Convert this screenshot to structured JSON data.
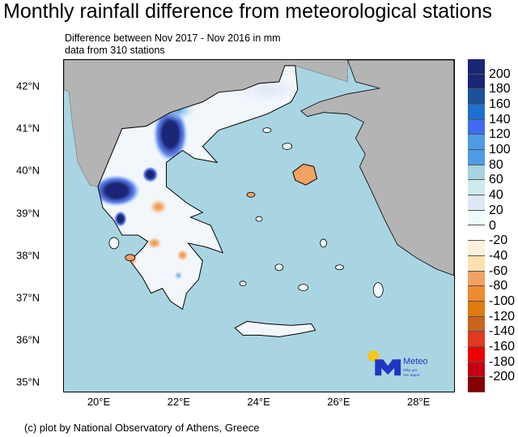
{
  "title": "Monthly rainfall difference from meteorological stations",
  "subtitle_lines": [
    "Difference between Nov 2017 - Nov 2016 in mm",
    "data from 310 stations"
  ],
  "lat_ticks": [
    "42°N",
    "41°N",
    "40°N",
    "39°N",
    "38°N",
    "37°N",
    "36°N",
    "35°N"
  ],
  "lon_ticks": [
    "20°E",
    "22°E",
    "24°E",
    "26°E",
    "28°E"
  ],
  "colorbar": {
    "labels": [
      "200",
      "180",
      "160",
      "140",
      "120",
      "100",
      "80",
      "60",
      "40",
      "20",
      "0",
      "-20",
      "-40",
      "-60",
      "-80",
      "-100",
      "-120",
      "-140",
      "-160",
      "-180",
      "-200"
    ],
    "colors": [
      "#1c2676",
      "#1c2676",
      "#19519c",
      "#1e70d0",
      "#3f6cf0",
      "#4e9be6",
      "#4e9be6",
      "#a7d3e2",
      "#cfeaee",
      "#dfe7f6",
      "#edfbfd",
      "#ffffff",
      "#fff0dc",
      "#fde2b0",
      "#f2a262",
      "#ee8a30",
      "#e07a10",
      "#c8641e",
      "#e03a20",
      "#ee0000",
      "#c40012",
      "#860000"
    ]
  },
  "map_colors": {
    "sea": "#a9d5e2",
    "foreign_land": "#b4b4b4",
    "greece_base": "#f2f7fc"
  },
  "logo": {
    "name": "Meteo",
    "tagline_lines": [
      "Όλα για",
      "τον καιρό"
    ]
  },
  "footer": "(c) plot by National Observatory of Athens, Greece"
}
